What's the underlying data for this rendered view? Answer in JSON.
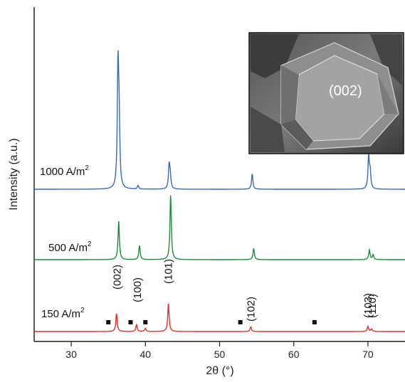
{
  "chart_data": {
    "type": "line",
    "title": "",
    "xlabel": "2θ (°)",
    "ylabel": "Intensity (a.u.)",
    "xlim": [
      25,
      75
    ],
    "xticks": [
      30,
      40,
      50,
      60,
      70
    ],
    "grid": false,
    "series": [
      {
        "name": "1000 A/m²",
        "label_main": "1000 A/m",
        "label_sup": "2",
        "color": "#3a6bb3",
        "peaks": [
          {
            "x": 36.3,
            "y": 1.0
          },
          {
            "x": 36.45,
            "y": 0.52
          },
          {
            "x": 39.0,
            "y": 0.03
          },
          {
            "x": 43.2,
            "y": 0.2
          },
          {
            "x": 43.35,
            "y": 0.1
          },
          {
            "x": 54.4,
            "y": 0.13
          },
          {
            "x": 70.1,
            "y": 0.27
          },
          {
            "x": 70.3,
            "y": 0.14
          }
        ]
      },
      {
        "name": "500 A/m²",
        "label_main": "500 A/m",
        "label_sup": "2",
        "color": "#1e8a3c",
        "peaks": [
          {
            "x": 36.4,
            "y": 0.55
          },
          {
            "x": 39.2,
            "y": 0.2
          },
          {
            "x": 43.4,
            "y": 0.92
          },
          {
            "x": 54.6,
            "y": 0.16
          },
          {
            "x": 70.2,
            "y": 0.14
          },
          {
            "x": 70.7,
            "y": 0.07
          }
        ]
      },
      {
        "name": "150 A/m²",
        "label_main": "150 A/m",
        "label_sup": "2",
        "color": "#e03030",
        "peaks": [
          {
            "x": 36.1,
            "y": 0.35
          },
          {
            "x": 38.8,
            "y": 0.13
          },
          {
            "x": 40.0,
            "y": 0.06
          },
          {
            "x": 43.1,
            "y": 0.55
          },
          {
            "x": 54.2,
            "y": 0.09
          },
          {
            "x": 70.0,
            "y": 0.1
          },
          {
            "x": 70.5,
            "y": 0.05
          }
        ]
      }
    ],
    "annotations": {
      "peak_labels": [
        {
          "text": "(002)",
          "x": 36.2
        },
        {
          "text": "(100)",
          "x": 38.9
        },
        {
          "text": "(101)",
          "x": 43.1
        },
        {
          "text": "(102)",
          "x": 54.2
        },
        {
          "text": "(103)",
          "x": 70.0
        },
        {
          "text": "(110)",
          "x": 70.6
        }
      ],
      "square_markers_x": [
        35.0,
        38.0,
        40.0,
        52.8,
        62.8
      ],
      "inset_label": "(002)"
    }
  }
}
